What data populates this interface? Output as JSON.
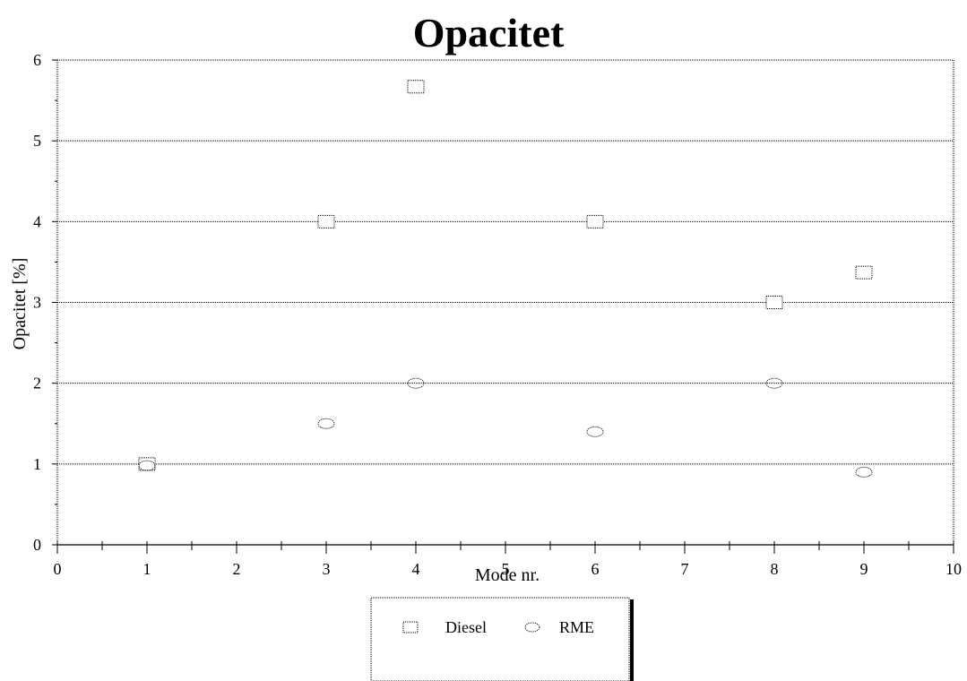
{
  "chart_data": {
    "type": "scatter",
    "title": "Opacitet",
    "xlabel": "Mode nr.",
    "ylabel": "Opacitet [%]",
    "xlim": [
      0,
      10
    ],
    "ylim": [
      0,
      6
    ],
    "x_ticks": [
      0,
      1,
      2,
      3,
      4,
      5,
      6,
      7,
      8,
      9,
      10
    ],
    "y_ticks": [
      0,
      1,
      2,
      3,
      4,
      5,
      6
    ],
    "grid": "horizontal",
    "legend_position": "bottom",
    "series": [
      {
        "name": "Diesel",
        "marker": "square",
        "points": [
          [
            1,
            1.0
          ],
          [
            3,
            4.0
          ],
          [
            4,
            5.67
          ],
          [
            6,
            4.0
          ],
          [
            8,
            3.0
          ],
          [
            9,
            3.37
          ]
        ]
      },
      {
        "name": "RME",
        "marker": "ellipse",
        "points": [
          [
            1,
            0.98
          ],
          [
            3,
            1.5
          ],
          [
            4,
            2.0
          ],
          [
            6,
            1.4
          ],
          [
            8,
            2.0
          ],
          [
            9,
            0.9
          ]
        ]
      }
    ]
  }
}
